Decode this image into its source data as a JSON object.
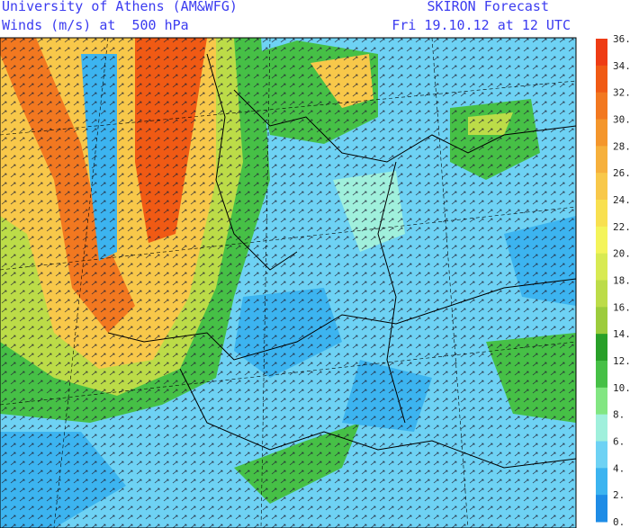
{
  "header": {
    "left_line1": "University of Athens (AM&WFG)",
    "left_line2": "Winds (m/s) at  500 hPa",
    "right_line1": "SKIRON Forecast",
    "right_line2": "Fri 19.10.12 at 12 UTC"
  },
  "colorbar": {
    "labels": [
      "36.",
      "34.",
      "32.",
      "30.",
      "28.",
      "26.",
      "24.",
      "22.",
      "20.",
      "18.",
      "16.",
      "14.",
      "12.",
      "10.",
      "8.",
      "6.",
      "4.",
      "2.",
      "0."
    ],
    "colors": [
      "#ee3c14",
      "#f05a14",
      "#f27820",
      "#f4962c",
      "#f6b03c",
      "#f8c84a",
      "#f8e050",
      "#f4f45a",
      "#d8ea52",
      "#bcdc48",
      "#9ccc3c",
      "#28a028",
      "#46c046",
      "#82e682",
      "#a0f0dc",
      "#6ed2f4",
      "#3cb4f0",
      "#1e8ce6"
    ]
  }
}
